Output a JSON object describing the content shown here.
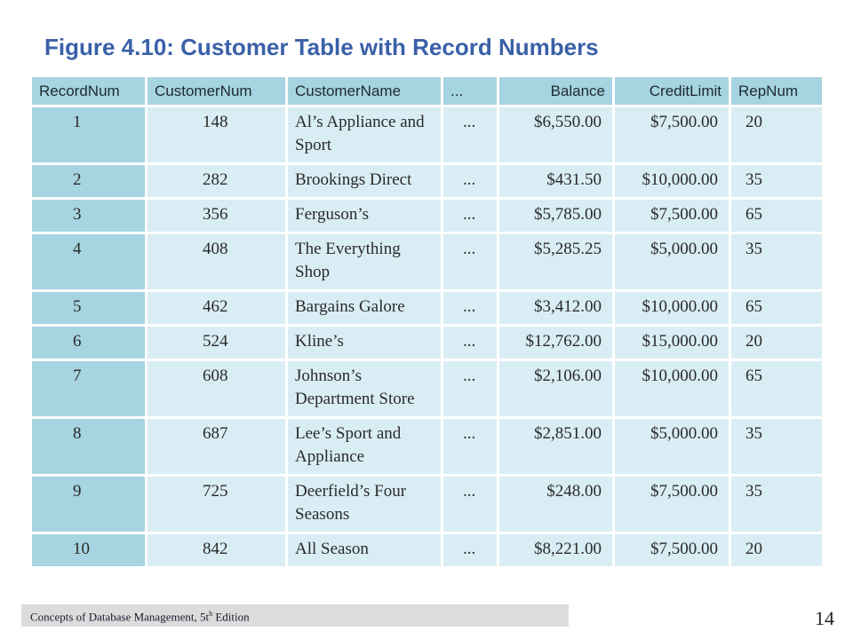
{
  "title": "Figure 4.10: Customer Table with Record Numbers",
  "table": {
    "headers": [
      "RecordNum",
      "CustomerNum",
      "CustomerName",
      "...",
      "Balance",
      "CreditLimit",
      "RepNum"
    ],
    "rows": [
      {
        "record": "1",
        "customer_num": "148",
        "name": "Al’s Appliance and Sport",
        "dots": "...",
        "balance": "$6,550.00",
        "credit_limit": "$7,500.00",
        "rep": "20"
      },
      {
        "record": "2",
        "customer_num": "282",
        "name": "Brookings Direct",
        "dots": "...",
        "balance": "$431.50",
        "credit_limit": "$10,000.00",
        "rep": "35"
      },
      {
        "record": "3",
        "customer_num": "356",
        "name": "Ferguson’s",
        "dots": "...",
        "balance": "$5,785.00",
        "credit_limit": "$7,500.00",
        "rep": "65"
      },
      {
        "record": "4",
        "customer_num": "408",
        "name": "The Everything Shop",
        "dots": "...",
        "balance": "$5,285.25",
        "credit_limit": "$5,000.00",
        "rep": "35"
      },
      {
        "record": "5",
        "customer_num": "462",
        "name": "Bargains Galore",
        "dots": "...",
        "balance": "$3,412.00",
        "credit_limit": "$10,000.00",
        "rep": "65"
      },
      {
        "record": "6",
        "customer_num": "524",
        "name": "Kline’s",
        "dots": "...",
        "balance": "$12,762.00",
        "credit_limit": "$15,000.00",
        "rep": "20"
      },
      {
        "record": "7",
        "customer_num": "608",
        "name": "Johnson’s Department Store",
        "dots": "...",
        "balance": "$2,106.00",
        "credit_limit": "$10,000.00",
        "rep": "65"
      },
      {
        "record": "8",
        "customer_num": "687",
        "name": "Lee’s Sport and Appliance",
        "dots": "...",
        "balance": "$2,851.00",
        "credit_limit": "$5,000.00",
        "rep": "35"
      },
      {
        "record": "9",
        "customer_num": "725",
        "name": "Deerfield’s Four Seasons",
        "dots": "...",
        "balance": "$248.00",
        "credit_limit": "$7,500.00",
        "rep": "35"
      },
      {
        "record": "10",
        "customer_num": "842",
        "name": "All Season",
        "dots": "...",
        "balance": "$8,221.00",
        "credit_limit": "$7,500.00",
        "rep": "20"
      }
    ]
  },
  "footer": {
    "text_before": "Concepts of Database Management, 5t",
    "superscript": "h",
    "text_after": " Edition",
    "page_number": "14"
  },
  "colors": {
    "title": "#3a61a8",
    "header_cell": "#a6d4e0",
    "body_cell": "#d9edf4",
    "footer_bar": "#dcdcdc"
  }
}
